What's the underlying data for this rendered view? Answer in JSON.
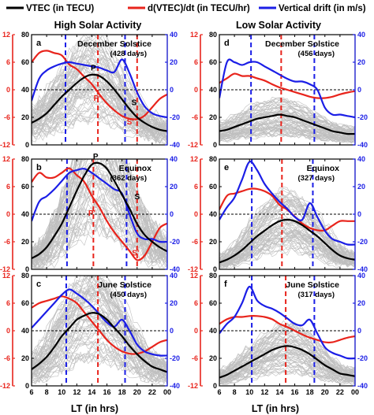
{
  "legend": [
    {
      "label": "VTEC (in TECU)",
      "color": "#000000"
    },
    {
      "label": "d(VTEC)/dt (in TECU/hr)",
      "color": "#e8241c"
    },
    {
      "label": "Vertical drift (in m/s)",
      "color": "#1b1ee6"
    }
  ],
  "column_titles": [
    "High Solar Activity",
    "Low Solar Activity"
  ],
  "xlabel": "LT (in hrs)",
  "colors": {
    "vtec": "#000000",
    "rate": "#e8241c",
    "drift": "#1b1ee6",
    "background_curves": "#b4b4b4"
  },
  "chart_data": [
    {
      "type": "line",
      "panel": "a",
      "season": "December Solstice",
      "days": "(428 days)",
      "xlim": [
        6,
        24
      ],
      "ylim_vtec": [
        0,
        80
      ],
      "ylim_rate": [
        -12,
        12
      ],
      "ylim_drift": [
        -40,
        40
      ],
      "x": [
        6,
        7,
        8,
        9,
        10,
        11,
        12,
        13,
        14,
        15,
        16,
        17,
        18,
        19,
        20,
        21,
        22,
        23,
        24
      ],
      "series": [
        {
          "name": "VTEC",
          "axis": "vtec",
          "values": [
            16,
            19,
            23,
            29,
            35,
            40,
            45,
            49,
            51,
            50,
            46,
            40,
            33,
            26,
            20,
            16,
            13,
            11,
            10
          ]
        },
        {
          "name": "d(VTEC)/dt",
          "axis": "rate",
          "values": [
            6.0,
            8.0,
            8.5,
            8.0,
            7.5,
            5.5,
            4.5,
            2.8,
            1.2,
            -1.0,
            -3.0,
            -4.5,
            -5.7,
            -6.3,
            -6.4,
            -5.6,
            -3.8,
            -2.0,
            -1.0
          ]
        },
        {
          "name": "Vertical drift",
          "axis": "drift",
          "values": [
            -8,
            8,
            14,
            17,
            19,
            20,
            19,
            18,
            17,
            16,
            14,
            13,
            22,
            12,
            -2,
            -12,
            -17,
            -19,
            -20
          ]
        }
      ],
      "vlines": [
        {
          "x": 10.5,
          "color": "#1b1ee6"
        },
        {
          "x": 14.8,
          "color": "#e8241c"
        },
        {
          "x": 18.4,
          "color": "#1b1ee6"
        },
        {
          "x": 20.0,
          "color": "#e8241c"
        }
      ],
      "markers": [
        "P",
        "P'",
        "S",
        "S'"
      ]
    },
    {
      "type": "line",
      "panel": "d",
      "season": "December Solstice",
      "days": "(456 days)",
      "xlim": [
        6,
        24
      ],
      "ylim_vtec": [
        0,
        80
      ],
      "ylim_rate": [
        -12,
        12
      ],
      "ylim_drift": [
        -40,
        40
      ],
      "x": [
        6,
        7,
        8,
        9,
        10,
        11,
        12,
        13,
        14,
        15,
        16,
        17,
        18,
        19,
        20,
        21,
        22,
        23,
        24
      ],
      "series": [
        {
          "name": "VTEC",
          "axis": "vtec",
          "values": [
            10,
            11,
            13,
            15,
            17,
            19,
            20,
            21,
            22,
            21,
            20,
            18,
            16,
            14,
            12,
            10,
            9,
            8,
            8
          ]
        },
        {
          "name": "d(VTEC)/dt",
          "axis": "rate",
          "values": [
            1.5,
            2.5,
            3.5,
            3.0,
            3.0,
            2.5,
            2.0,
            1.2,
            0.5,
            0,
            -0.5,
            -1.0,
            -1.5,
            -1.8,
            -1.8,
            -1.5,
            -1.0,
            -0.6,
            -0.3
          ]
        },
        {
          "name": "Vertical drift",
          "axis": "drift",
          "values": [
            -6,
            20,
            20,
            18,
            20,
            20,
            17,
            14,
            11,
            8,
            6,
            6,
            4,
            0,
            -13,
            -18,
            -18,
            -19,
            -20
          ]
        }
      ],
      "vlines": [
        {
          "x": 10.2,
          "color": "#1b1ee6"
        },
        {
          "x": 14.2,
          "color": "#e8241c"
        },
        {
          "x": 18.6,
          "color": "#1b1ee6"
        }
      ],
      "markers": []
    },
    {
      "type": "line",
      "panel": "b",
      "season": "Equinox",
      "days": "(362 days)",
      "xlim": [
        6,
        24
      ],
      "ylim_vtec": [
        0,
        80
      ],
      "ylim_rate": [
        -12,
        12
      ],
      "ylim_drift": [
        -40,
        40
      ],
      "x": [
        6,
        7,
        8,
        9,
        10,
        11,
        12,
        13,
        14,
        15,
        16,
        17,
        18,
        19,
        20,
        21,
        22,
        23,
        24
      ],
      "series": [
        {
          "name": "VTEC",
          "axis": "vtec",
          "values": [
            8,
            11,
            16,
            24,
            33,
            45,
            57,
            68,
            76,
            77,
            73,
            64,
            54,
            44,
            33,
            25,
            20,
            16,
            13
          ]
        },
        {
          "name": "d(VTEC)/dt",
          "axis": "rate",
          "values": [
            7,
            9,
            8,
            8,
            9,
            10,
            8.5,
            7,
            4,
            1.5,
            -1.5,
            -4,
            -6,
            -8,
            -10,
            -9,
            -6,
            -3,
            -2
          ]
        },
        {
          "name": "Vertical drift",
          "axis": "drift",
          "values": [
            -5,
            9,
            13,
            18,
            24,
            30,
            32,
            33,
            30,
            26,
            22,
            18,
            15,
            0,
            -14,
            -18,
            -18,
            -20,
            -20
          ]
        }
      ],
      "vlines": [
        {
          "x": 10.7,
          "color": "#1b1ee6"
        },
        {
          "x": 14.2,
          "color": "#e8241c"
        },
        {
          "x": 18.6,
          "color": "#1b1ee6"
        },
        {
          "x": 20.0,
          "color": "#e8241c"
        }
      ],
      "markers": [
        "P",
        "P'",
        "S",
        "S'"
      ]
    },
    {
      "type": "line",
      "panel": "e",
      "season": "Equinox",
      "days": "(327 days)",
      "xlim": [
        6,
        24
      ],
      "ylim_vtec": [
        0,
        80
      ],
      "ylim_rate": [
        -12,
        12
      ],
      "ylim_drift": [
        -40,
        40
      ],
      "x": [
        6,
        7,
        8,
        9,
        10,
        11,
        12,
        13,
        14,
        15,
        16,
        17,
        18,
        19,
        20,
        21,
        22,
        23,
        24
      ],
      "series": [
        {
          "name": "VTEC",
          "axis": "vtec",
          "values": [
            5,
            7,
            10,
            14,
            19,
            24,
            28,
            32,
            35,
            36,
            35,
            32,
            28,
            24,
            19,
            14,
            10,
            8,
            7
          ]
        },
        {
          "name": "d(VTEC)/dt",
          "axis": "rate",
          "values": [
            1,
            4,
            4.5,
            5,
            5.5,
            5.5,
            5,
            4,
            2,
            1,
            -0.5,
            -2,
            -3,
            -3.5,
            -3.5,
            -2.5,
            -1.5,
            -1.5,
            -1.5
          ]
        },
        {
          "name": "Vertical drift",
          "axis": "drift",
          "values": [
            -4,
            5,
            12,
            25,
            38,
            32,
            22,
            15,
            9,
            4,
            -2,
            -4,
            8,
            -2,
            -12,
            -18,
            -20,
            -22,
            -22
          ]
        }
      ],
      "vlines": [
        {
          "x": 10.3,
          "color": "#1b1ee6"
        },
        {
          "x": 14.3,
          "color": "#e8241c"
        },
        {
          "x": 18.4,
          "color": "#1b1ee6"
        }
      ],
      "markers": []
    },
    {
      "type": "line",
      "panel": "c",
      "season": "June Solstice",
      "days": "(450 days)",
      "xlim": [
        6,
        24
      ],
      "ylim_vtec": [
        0,
        80
      ],
      "ylim_rate": [
        -12,
        12
      ],
      "ylim_drift": [
        -40,
        40
      ],
      "x": [
        6,
        7,
        8,
        9,
        10,
        11,
        12,
        13,
        14,
        15,
        16,
        17,
        18,
        19,
        20,
        21,
        22,
        23,
        24
      ],
      "series": [
        {
          "name": "VTEC",
          "axis": "vtec",
          "values": [
            12,
            16,
            21,
            28,
            36,
            42,
            48,
            51,
            53,
            52,
            48,
            42,
            36,
            29,
            23,
            18,
            14,
            12,
            10
          ]
        },
        {
          "name": "d(VTEC)/dt",
          "axis": "rate",
          "values": [
            5,
            6,
            6.5,
            7,
            7.5,
            7,
            6,
            4,
            2,
            0,
            -2,
            -3.5,
            -4.5,
            -5,
            -5,
            -4.5,
            -3.5,
            -2.5,
            -2
          ]
        },
        {
          "name": "Vertical drift",
          "axis": "drift",
          "values": [
            2,
            8,
            14,
            20,
            26,
            30,
            27,
            23,
            18,
            12,
            6,
            3,
            8,
            0,
            -10,
            -15,
            -17,
            -18,
            -18
          ]
        }
      ],
      "vlines": [
        {
          "x": 10.6,
          "color": "#1b1ee6"
        },
        {
          "x": 14.8,
          "color": "#e8241c"
        },
        {
          "x": 18.4,
          "color": "#1b1ee6"
        }
      ],
      "markers": []
    },
    {
      "type": "line",
      "panel": "f",
      "season": "June Solstice",
      "days": "(317 days)",
      "xlim": [
        6,
        24
      ],
      "ylim_vtec": [
        0,
        80
      ],
      "ylim_rate": [
        -12,
        12
      ],
      "ylim_drift": [
        -40,
        40
      ],
      "x": [
        6,
        7,
        8,
        9,
        10,
        11,
        12,
        13,
        14,
        15,
        16,
        17,
        18,
        19,
        20,
        21,
        22,
        23,
        24
      ],
      "series": [
        {
          "name": "VTEC",
          "axis": "vtec",
          "values": [
            6,
            8,
            11,
            14,
            17,
            20,
            23,
            26,
            28,
            29,
            28,
            26,
            23,
            19,
            15,
            12,
            9,
            8,
            7
          ]
        },
        {
          "name": "d(VTEC)/dt",
          "axis": "rate",
          "values": [
            1.5,
            2.5,
            3,
            3,
            3.2,
            3.2,
            3,
            2.5,
            1.5,
            0.8,
            0,
            -0.8,
            -1.5,
            -2,
            -2.5,
            -2.5,
            -2,
            -1.5,
            -1.2
          ]
        },
        {
          "name": "Vertical drift",
          "axis": "drift",
          "values": [
            -2,
            5,
            10,
            20,
            32,
            22,
            18,
            16,
            13,
            9,
            5,
            4,
            8,
            -2,
            -12,
            -16,
            -18,
            -20,
            -20
          ]
        }
      ],
      "vlines": [
        {
          "x": 10.3,
          "color": "#1b1ee6"
        },
        {
          "x": 14.8,
          "color": "#e8241c"
        },
        {
          "x": 18.6,
          "color": "#1b1ee6"
        }
      ],
      "markers": []
    }
  ],
  "markers": {
    "a": [
      {
        "label": "P",
        "x": 14.2,
        "v": 54
      },
      {
        "label": "P'",
        "x": 14.7,
        "v": 32
      },
      {
        "label": "S",
        "x": 19.6,
        "v": 29
      },
      {
        "label": "S'",
        "x": 19.1,
        "v": 15
      }
    ],
    "b": [
      {
        "label": "P",
        "x": 14.5,
        "v": 80
      },
      {
        "label": "P'",
        "x": 14.0,
        "v": 39
      },
      {
        "label": "S",
        "x": 20.0,
        "v": 51
      },
      {
        "label": "S'",
        "x": 19.8,
        "v": 10
      }
    ]
  }
}
